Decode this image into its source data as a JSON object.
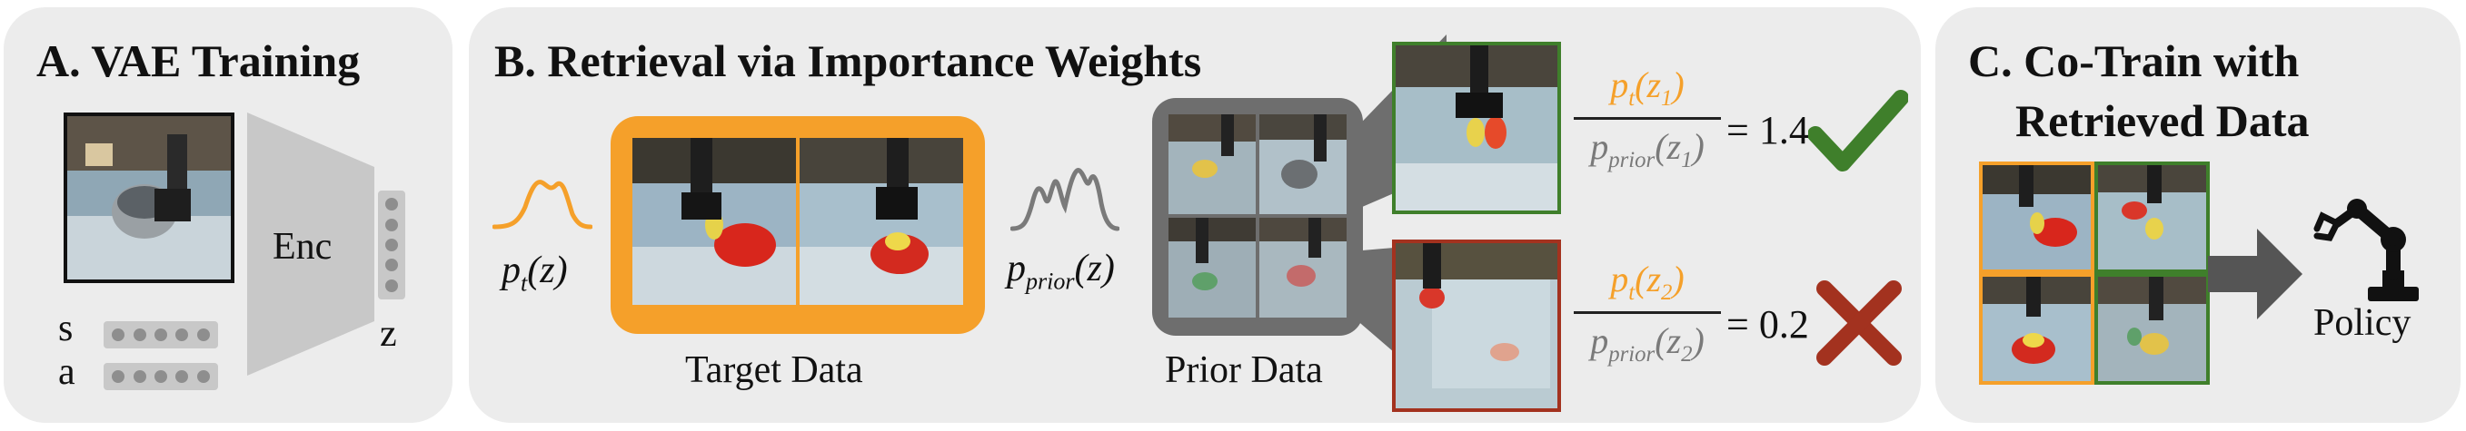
{
  "panel_a": {
    "title": "A. VAE Training",
    "encoder_label": "Enc",
    "input_s_label": "s",
    "input_a_label": "a",
    "latent_label": "z"
  },
  "panel_b": {
    "title": "B. Retrieval via Importance Weights",
    "target": {
      "dist_symbol": "p",
      "dist_sub": "t",
      "dist_arg": "(z)",
      "caption": "Target Data"
    },
    "prior": {
      "dist_symbol": "p",
      "dist_sub": "prior",
      "dist_arg": "(z)",
      "caption": "Prior Data"
    },
    "weights": [
      {
        "numerator_sym": "p",
        "numerator_sub": "t",
        "numerator_arg": "(z",
        "numerator_idx": "1",
        "denominator_sym": "p",
        "denominator_sub": "prior",
        "denominator_arg": "(z",
        "denominator_idx": "1",
        "value": "= 1.4",
        "result_icon": "checkmark-icon"
      },
      {
        "numerator_sym": "p",
        "numerator_sub": "t",
        "numerator_arg": "(z",
        "numerator_idx": "2",
        "denominator_sym": "p",
        "denominator_sub": "prior",
        "denominator_arg": "(z",
        "denominator_idx": "2",
        "value": "= 0.2",
        "result_icon": "cross-icon"
      }
    ]
  },
  "panel_c": {
    "title_line1": "C. Co-Train with",
    "title_line2": "Retrieved Data",
    "policy_label": "Policy",
    "policy_icon": "robot-arm-icon"
  },
  "colors": {
    "panel_bg": "#ececec",
    "target_orange": "#f5a02a",
    "prior_gray": "#7a7a7a",
    "accept_green": "#3f7f2b",
    "reject_red": "#a3321f",
    "arrow_gray": "#555555"
  }
}
